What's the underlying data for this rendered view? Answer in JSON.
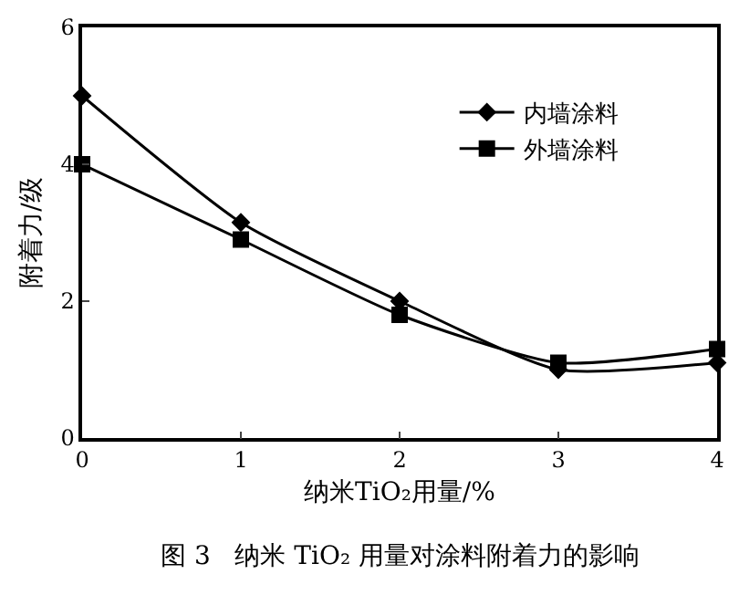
{
  "chart_data": {
    "type": "line",
    "xlabel": "纳米TiO₂用量/%",
    "ylabel": "附着力/级",
    "annotations": [
      "图 3   纳米 TiO₂ 用量对涂料附着力的影响"
    ],
    "x": [
      0,
      1,
      2,
      3,
      4
    ],
    "series": [
      {
        "name": "内墙涂料",
        "color": "#000000",
        "marker": "diamond",
        "values": [
          5.0,
          3.15,
          2.0,
          1.0,
          1.1
        ]
      },
      {
        "name": "外墙涂料",
        "color": "#000000",
        "marker": "square",
        "values": [
          4.0,
          2.9,
          1.8,
          1.1,
          1.3
        ]
      }
    ],
    "xlim": [
      0,
      4
    ],
    "xticks": [
      0,
      1,
      2,
      3,
      4
    ],
    "ylim": [
      0,
      6
    ],
    "yticks": [
      0,
      2,
      4,
      6
    ],
    "legend": "top right",
    "line_style": "solid"
  }
}
